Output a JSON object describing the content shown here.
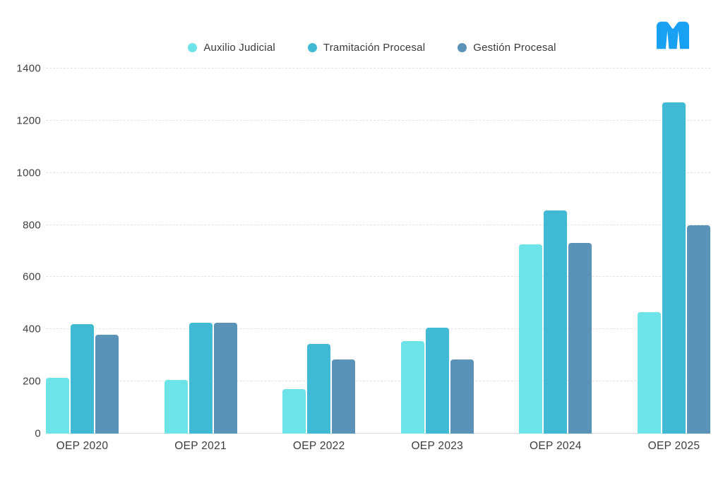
{
  "page": {
    "background": "#ffffff"
  },
  "logo": {
    "name": "M",
    "color": "#18a0f3"
  },
  "chart_data": {
    "type": "bar",
    "title": "",
    "xlabel": "",
    "ylabel": "",
    "categories": [
      "OEP 2020",
      "OEP 2021",
      "OEP 2022",
      "OEP 2023",
      "OEP 2024",
      "OEP 2025"
    ],
    "series": [
      {
        "name": "Auxilio Judicial",
        "color": "#6be3e7",
        "values": [
          215,
          205,
          170,
          355,
          725,
          465
        ]
      },
      {
        "name": "Tramitación Procesal",
        "color": "#3fb9d4",
        "values": [
          420,
          425,
          345,
          405,
          855,
          1270
        ]
      },
      {
        "name": "Gestión Procesal",
        "color": "#5b92b8",
        "values": [
          380,
          425,
          285,
          285,
          730,
          800
        ]
      }
    ],
    "ylim": [
      0,
      1400
    ],
    "yticks": [
      0,
      200,
      400,
      600,
      800,
      1000,
      1200,
      1400
    ],
    "grid": "horizontal-dashed",
    "legend_position": "top-center",
    "colors": {
      "grid": "#e3e3e3",
      "axis_text": "#3e3e3e",
      "legend_text": "#3a3a3a"
    }
  }
}
